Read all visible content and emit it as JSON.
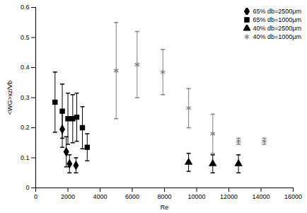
{
  "chart_data": {
    "type": "scatter",
    "x_label": "Re",
    "y_label": "<WG>xz/Vb",
    "xlim": [
      0,
      16000
    ],
    "xticks": [
      0,
      2000,
      4000,
      6000,
      8000,
      10000,
      12000,
      14000,
      16000
    ],
    "ylim": [
      0,
      0.6
    ],
    "yticks": [
      0,
      0.1,
      0.2,
      0.3,
      0.4,
      0.5,
      0.6
    ],
    "grid": false,
    "legend": "upper right",
    "series": [
      {
        "name": "65%  db=2500μm",
        "color": "#000000",
        "marker": "diamond",
        "x": [
          1650,
          1900,
          2100,
          2500
        ],
        "values": [
          0.195,
          0.12,
          0.08,
          0.075
        ],
        "errors": [
          0.06,
          0.05,
          0.03,
          0.025
        ]
      },
      {
        "name": "65%  db=1000μm",
        "color": "#000000",
        "marker": "square",
        "x": [
          1200,
          1650,
          2000,
          2300,
          2550,
          2900,
          3200
        ],
        "values": [
          0.285,
          0.255,
          0.23,
          0.23,
          0.235,
          0.2,
          0.135
        ],
        "errors": [
          0.1,
          0.09,
          0.085,
          0.08,
          0.08,
          0.07,
          0.045
        ]
      },
      {
        "name": "40%  db=2500μm",
        "color": "#000000",
        "marker": "triangle",
        "x": [
          9500,
          11000,
          12600
        ],
        "values": [
          0.085,
          0.08,
          0.08
        ],
        "errors": [
          0.03,
          0.03,
          0.03
        ]
      },
      {
        "name": "40%  db=1000μm",
        "color": "#808080",
        "marker": "asterisk",
        "x": [
          5000,
          6300,
          7900,
          9500,
          11000,
          12600,
          14200
        ],
        "values": [
          0.39,
          0.41,
          0.385,
          0.265,
          0.18,
          0.155,
          0.155
        ],
        "errors": [
          0.16,
          0.11,
          0.075,
          0.065,
          0.065,
          0.01,
          0.01
        ]
      }
    ]
  }
}
